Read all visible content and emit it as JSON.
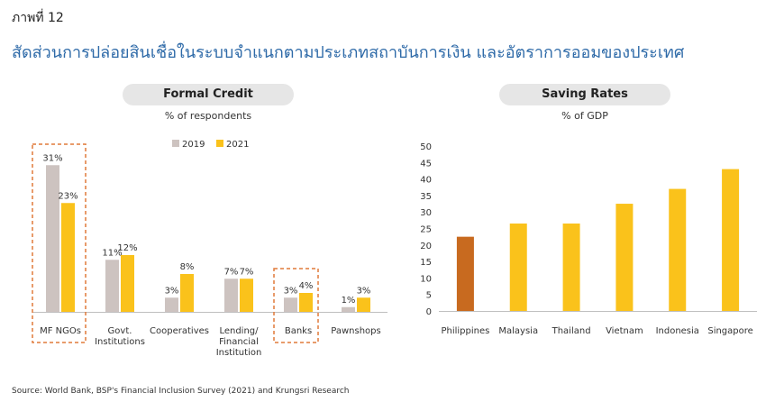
{
  "figure_label": "ภาพที่ 12",
  "headline": "สัดส่วนการปล่อยสินเชื่อในระบบจำแนกตามประเภทสถาบันการเงิน และอัตราการออมของประเทศ",
  "source": "Source: World Bank, BSP's Financial Inclusion Survey (2021) and Krungsri Research",
  "colors": {
    "y2019": "#cdc3c0",
    "y2021": "#fac21b",
    "philippines": "#c86a1f",
    "others": "#fac21b",
    "highlight_box": "#e07a3a",
    "pill": "#e6e6e6"
  },
  "chart_data": [
    {
      "type": "bar",
      "title": "Formal Credit",
      "subtitle": "% of respondents",
      "categories": [
        [
          "MF NGOs"
        ],
        [
          "Govt.",
          "Institutions"
        ],
        [
          "Cooperatives"
        ],
        [
          "Lending/",
          "Financial",
          "Institution"
        ],
        [
          "Banks"
        ],
        [
          "Pawnshops"
        ]
      ],
      "series": [
        {
          "name": "2019",
          "values": [
            31,
            11,
            3,
            7,
            3,
            1
          ],
          "labels": [
            "31%",
            "11%",
            "3%",
            "7%",
            "3%",
            "1%"
          ]
        },
        {
          "name": "2021",
          "values": [
            23,
            12,
            8,
            7,
            4,
            3
          ],
          "labels": [
            "23%",
            "12%",
            "8%",
            "7%",
            "4%",
            "3%"
          ]
        }
      ],
      "highlighted_categories": [
        "MF NGOs",
        "Banks"
      ],
      "legend_position": "top"
    },
    {
      "type": "bar",
      "title": "Saving Rates",
      "subtitle": "% of GDP",
      "categories": [
        "Philippines",
        "Malaysia",
        "Thailand",
        "Vietnam",
        "Indonesia",
        "Singapore"
      ],
      "values": [
        22.5,
        26.5,
        26.5,
        32.5,
        37,
        43
      ],
      "ylim": [
        0,
        50
      ],
      "yticks": [
        0,
        5,
        10,
        15,
        20,
        25,
        30,
        35,
        40,
        45,
        50
      ]
    }
  ]
}
